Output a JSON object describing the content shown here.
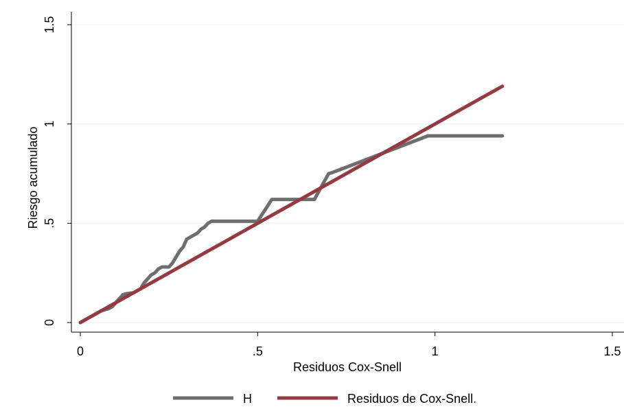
{
  "chart_data": {
    "type": "line",
    "title": "",
    "xlabel": "Residuos Cox-Snell",
    "ylabel": "Riesgo acumulado",
    "xlim": [
      0,
      1.5
    ],
    "ylim": [
      0,
      1.5
    ],
    "x_ticks": [
      0,
      0.5,
      1,
      1.5
    ],
    "x_tick_labels": [
      "0",
      ".5",
      "1",
      "1.5"
    ],
    "y_ticks": [
      0,
      0.5,
      1,
      1.5
    ],
    "y_tick_labels": [
      "0",
      ".5",
      "1",
      "1.5"
    ],
    "grid": "horizontal",
    "legend_position": "bottom",
    "series": [
      {
        "name": "H",
        "color": "#6e6e6e",
        "x": [
          0,
          0.02,
          0.03,
          0.04,
          0.05,
          0.06,
          0.07,
          0.08,
          0.09,
          0.1,
          0.11,
          0.12,
          0.13,
          0.15,
          0.16,
          0.17,
          0.18,
          0.19,
          0.2,
          0.21,
          0.22,
          0.23,
          0.25,
          0.26,
          0.27,
          0.28,
          0.29,
          0.3,
          0.31,
          0.32,
          0.33,
          0.34,
          0.35,
          0.36,
          0.37,
          0.5,
          0.54,
          0.66,
          0.7,
          0.71,
          0.98,
          1.19
        ],
        "y": [
          0,
          0.02,
          0.03,
          0.04,
          0.05,
          0.06,
          0.065,
          0.07,
          0.08,
          0.1,
          0.12,
          0.14,
          0.145,
          0.15,
          0.16,
          0.17,
          0.2,
          0.22,
          0.24,
          0.25,
          0.27,
          0.28,
          0.28,
          0.3,
          0.33,
          0.36,
          0.38,
          0.42,
          0.43,
          0.44,
          0.45,
          0.47,
          0.48,
          0.5,
          0.51,
          0.51,
          0.62,
          0.62,
          0.75,
          0.755,
          0.94,
          0.94
        ]
      },
      {
        "name": "Residuos de Cox-Snell.",
        "color": "#943a40",
        "x": [
          0,
          1.19
        ],
        "y": [
          0,
          1.19
        ]
      }
    ]
  }
}
